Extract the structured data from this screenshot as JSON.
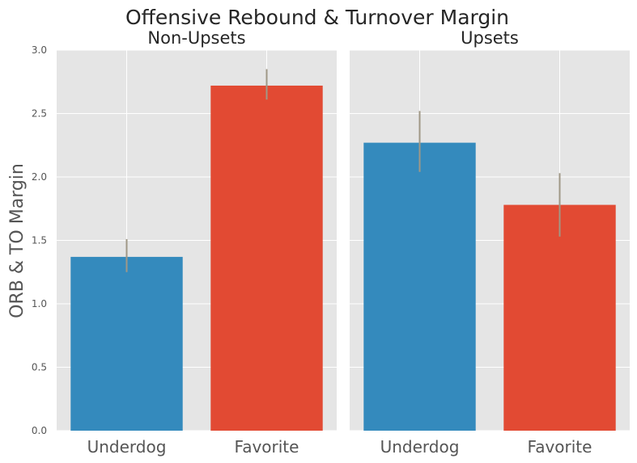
{
  "chart_data": {
    "type": "bar",
    "title": "Offensive Rebound & Turnover Margin",
    "ylabel": "ORB & TO Margin",
    "ylim": [
      0,
      3.0
    ],
    "yticks": [
      "0.0",
      "0.5",
      "1.0",
      "1.5",
      "2.0",
      "2.5",
      "3.0"
    ],
    "grid": true,
    "colors": {
      "Underdog": "#348abd",
      "Favorite": "#e24a33",
      "background": "#e5e5e5",
      "errorbar": "#a09886"
    },
    "panels": [
      {
        "title": "Non-Upsets",
        "categories": [
          "Underdog",
          "Favorite"
        ],
        "values": [
          1.37,
          2.72
        ],
        "error_low": [
          1.25,
          2.61
        ],
        "error_high": [
          1.51,
          2.85
        ]
      },
      {
        "title": "Upsets",
        "categories": [
          "Underdog",
          "Favorite"
        ],
        "values": [
          2.27,
          1.78
        ],
        "error_low": [
          2.04,
          1.53
        ],
        "error_high": [
          2.52,
          2.03
        ]
      }
    ]
  }
}
